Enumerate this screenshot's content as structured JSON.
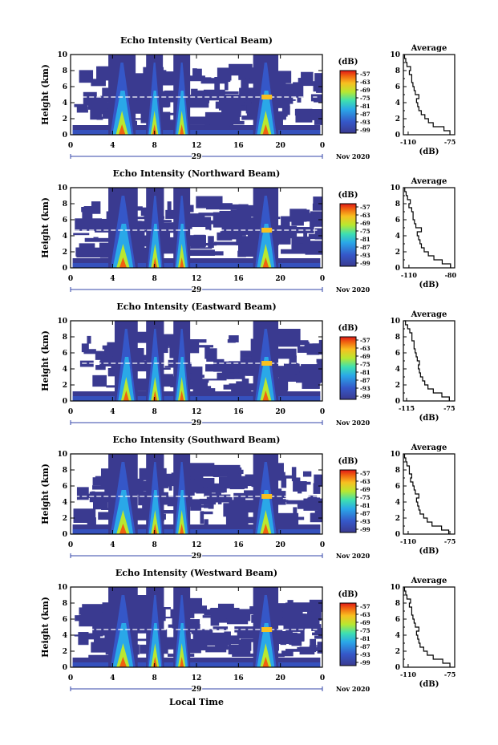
{
  "figure": {
    "xlabel": "Local Time",
    "month_label": "Nov 2020"
  },
  "chart_data": [
    {
      "type": "heatmap",
      "title": "Echo Intensity (Vertical Beam)",
      "ylabel": "Height (km)",
      "xlim": [
        0,
        24
      ],
      "ylim": [
        0,
        10
      ],
      "x_ticks": [
        "0",
        "4",
        "8",
        "12",
        "16",
        "20",
        "0"
      ],
      "y_ticks": [
        "0",
        "2",
        "4",
        "6",
        "8",
        "10"
      ],
      "day_label": "29",
      "colorbar": {
        "unit": "(dB)",
        "ticks": [
          "-57",
          "-63",
          "-69",
          "-75",
          "-81",
          "-87",
          "-93",
          "-99"
        ]
      },
      "rain_events_hours": [
        [
          3.6,
          6.2
        ],
        [
          7.2,
          8.8
        ],
        [
          9.8,
          11.4
        ],
        [
          17.4,
          19.8
        ]
      ],
      "average_profile": {
        "xlabel": "(dB)",
        "title": "Average",
        "x_ticks": [
          "-110",
          "-75"
        ],
        "xlim": [
          -114,
          -71
        ],
        "y_ticks": [
          "0",
          "2",
          "4",
          "6",
          "8",
          "10"
        ],
        "height_km": [
          0,
          0.5,
          1,
          1.5,
          2,
          2.5,
          3,
          3.5,
          4,
          4.5,
          5,
          5.5,
          6,
          6.5,
          7,
          7.5,
          8,
          8.5,
          9,
          9.5,
          10
        ],
        "db": [
          -75,
          -80,
          -89,
          -93,
          -96,
          -99,
          -101,
          -102,
          -103,
          -101,
          -104,
          -105,
          -106,
          -107,
          -107,
          -109,
          -108,
          -111,
          -112,
          -113,
          -113
        ]
      }
    },
    {
      "type": "heatmap",
      "title": "Echo Intensity (Northward Beam)",
      "ylabel": "Height (km)",
      "xlim": [
        0,
        24
      ],
      "ylim": [
        0,
        10
      ],
      "x_ticks": [
        "0",
        "4",
        "8",
        "12",
        "16",
        "20",
        "0"
      ],
      "y_ticks": [
        "0",
        "2",
        "4",
        "6",
        "8",
        "10"
      ],
      "day_label": "29",
      "colorbar": {
        "unit": "(dB)",
        "ticks": [
          "-57",
          "-63",
          "-69",
          "-75",
          "-81",
          "-87",
          "-93",
          "-99"
        ]
      },
      "rain_events_hours": [
        [
          3.6,
          6.4
        ],
        [
          7.2,
          8.9
        ],
        [
          9.8,
          11.4
        ],
        [
          17.4,
          19.8
        ]
      ],
      "average_profile": {
        "xlabel": "(dB)",
        "title": "Average",
        "x_ticks": [
          "-110",
          "-80"
        ],
        "xlim": [
          -114,
          -77
        ],
        "y_ticks": [
          "0",
          "2",
          "4",
          "6",
          "8",
          "10"
        ],
        "height_km": [
          0,
          0.5,
          1,
          1.5,
          2,
          2.5,
          3,
          3.5,
          4,
          4.5,
          5,
          5.5,
          6,
          6.5,
          7,
          7.5,
          8,
          8.5,
          9,
          9.5,
          10
        ],
        "db": [
          -80,
          -86,
          -92,
          -96,
          -99,
          -101,
          -102,
          -103,
          -104,
          -101,
          -105,
          -106,
          -107,
          -107,
          -108,
          -110,
          -109,
          -111,
          -112,
          -113,
          -113
        ]
      }
    },
    {
      "type": "heatmap",
      "title": "Echo Intensity (Eastward Beam)",
      "ylabel": "Height (km)",
      "xlim": [
        0,
        24
      ],
      "ylim": [
        0,
        10
      ],
      "x_ticks": [
        "0",
        "4",
        "8",
        "12",
        "16",
        "20",
        "0"
      ],
      "y_ticks": [
        "0",
        "2",
        "4",
        "6",
        "8",
        "10"
      ],
      "day_label": "29",
      "colorbar": {
        "unit": "(dB)",
        "ticks": [
          "-57",
          "-63",
          "-69",
          "-75",
          "-81",
          "-87",
          "-93",
          "-99"
        ]
      },
      "rain_events_hours": [
        [
          4.2,
          6.4
        ],
        [
          7.2,
          8.9
        ],
        [
          9.8,
          11.4
        ],
        [
          17.4,
          19.8
        ]
      ],
      "average_profile": {
        "xlabel": "(dB)",
        "title": "Average",
        "x_ticks": [
          "-115",
          "-75"
        ],
        "xlim": [
          -118,
          -70
        ],
        "y_ticks": [
          "0",
          "2",
          "4",
          "6",
          "8",
          "10"
        ],
        "height_km": [
          0,
          0.5,
          1,
          1.5,
          2,
          2.5,
          3,
          3.5,
          4,
          4.5,
          5,
          5.5,
          6,
          6.5,
          7,
          7.5,
          8,
          8.5,
          9,
          9.5,
          10
        ],
        "db": [
          -75,
          -82,
          -90,
          -95,
          -98,
          -100,
          -102,
          -103,
          -104,
          -103,
          -105,
          -106,
          -107,
          -108,
          -108,
          -110,
          -110,
          -112,
          -114,
          -116,
          -117
        ]
      }
    },
    {
      "type": "heatmap",
      "title": "Echo Intensity (Southward Beam)",
      "ylabel": "Height (km)",
      "xlim": [
        0,
        24
      ],
      "ylim": [
        0,
        10
      ],
      "x_ticks": [
        "0",
        "4",
        "8",
        "12",
        "16",
        "20",
        "0"
      ],
      "y_ticks": [
        "0",
        "2",
        "4",
        "6",
        "8",
        "10"
      ],
      "day_label": "29",
      "colorbar": {
        "unit": "(dB)",
        "ticks": [
          "-57",
          "-63",
          "-69",
          "-75",
          "-81",
          "-87",
          "-93",
          "-99"
        ]
      },
      "rain_events_hours": [
        [
          3.6,
          6.4
        ],
        [
          7.2,
          8.9
        ],
        [
          9.8,
          11.4
        ],
        [
          17.4,
          19.8
        ]
      ],
      "average_profile": {
        "xlabel": "(dB)",
        "title": "Average",
        "x_ticks": [
          "-110",
          "-75"
        ],
        "xlim": [
          -114,
          -71
        ],
        "y_ticks": [
          "0",
          "2",
          "4",
          "6",
          "8",
          "10"
        ],
        "height_km": [
          0,
          0.5,
          1,
          1.5,
          2,
          2.5,
          3,
          3.5,
          4,
          4.5,
          5,
          5.5,
          6,
          6.5,
          7,
          7.5,
          8,
          8.5,
          9,
          9.5,
          10
        ],
        "db": [
          -76,
          -82,
          -90,
          -94,
          -97,
          -100,
          -101,
          -102,
          -103,
          -101,
          -104,
          -105,
          -106,
          -108,
          -107,
          -109,
          -109,
          -111,
          -112,
          -113,
          -113
        ]
      }
    },
    {
      "type": "heatmap",
      "title": "Echo Intensity (Westward Beam)",
      "ylabel": "Height (km)",
      "xlim": [
        0,
        24
      ],
      "ylim": [
        0,
        10
      ],
      "x_ticks": [
        "0",
        "4",
        "8",
        "12",
        "16",
        "20",
        "0"
      ],
      "y_ticks": [
        "0",
        "2",
        "4",
        "6",
        "8",
        "10"
      ],
      "day_label": "29",
      "colorbar": {
        "unit": "(dB)",
        "ticks": [
          "-57",
          "-63",
          "-69",
          "-75",
          "-81",
          "-87",
          "-93",
          "-99"
        ]
      },
      "rain_events_hours": [
        [
          3.6,
          6.4
        ],
        [
          7.2,
          8.9
        ],
        [
          9.8,
          11.4
        ],
        [
          17.4,
          19.8
        ]
      ],
      "average_profile": {
        "xlabel": "(dB)",
        "title": "Average",
        "x_ticks": [
          "-110",
          "-75"
        ],
        "xlim": [
          -114,
          -71
        ],
        "y_ticks": [
          "0",
          "2",
          "4",
          "6",
          "8",
          "10"
        ],
        "height_km": [
          0,
          0.5,
          1,
          1.5,
          2,
          2.5,
          3,
          3.5,
          4,
          4.5,
          5,
          5.5,
          6,
          6.5,
          7,
          7.5,
          8,
          8.5,
          9,
          9.5,
          10
        ],
        "db": [
          -75,
          -81,
          -89,
          -94,
          -97,
          -100,
          -101,
          -102,
          -103,
          -101,
          -104,
          -105,
          -106,
          -107,
          -107,
          -109,
          -108,
          -111,
          -112,
          -113,
          -113
        ]
      }
    }
  ]
}
